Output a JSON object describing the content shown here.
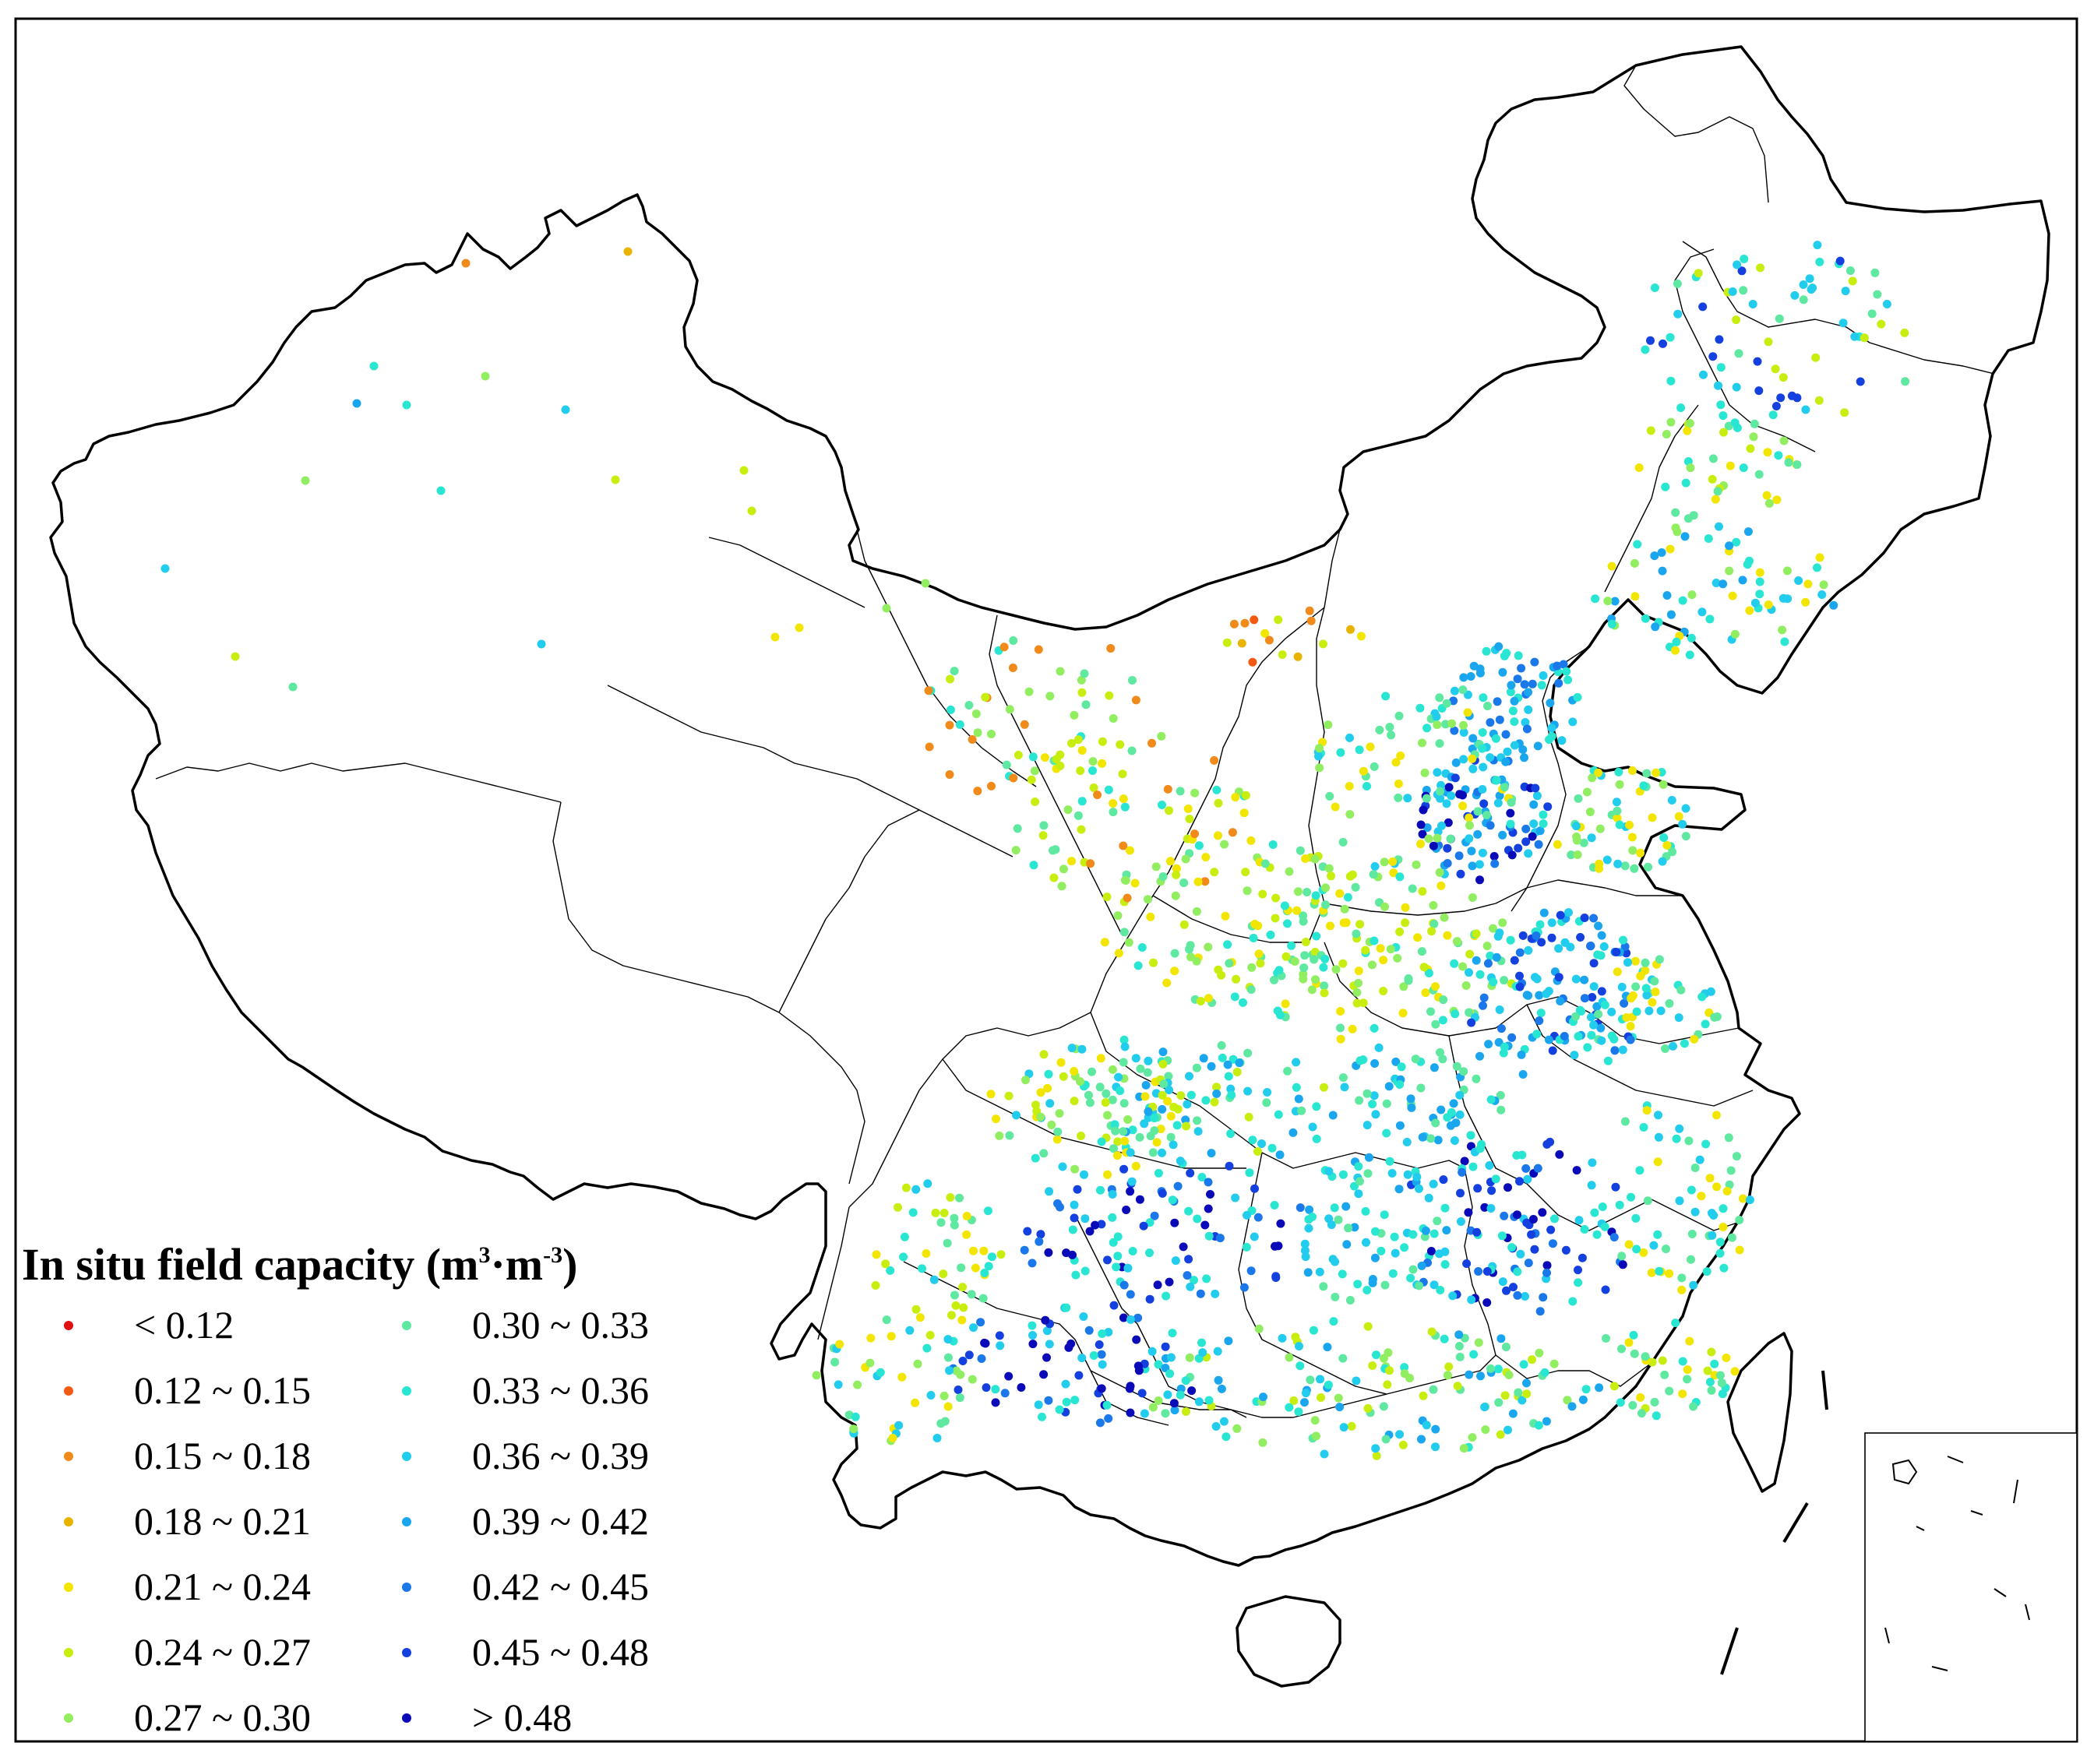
{
  "legend": {
    "title_main": "In situ field capacity (m",
    "title_sup1": "3",
    "title_mid": "·m",
    "title_sup2": "-3",
    "title_end": ")",
    "classes": [
      {
        "label": "< 0.12",
        "color": "#e01010"
      },
      {
        "label": "0.12 ~ 0.15",
        "color": "#f05a12"
      },
      {
        "label": "0.15 ~ 0.18",
        "color": "#f08a1a"
      },
      {
        "label": "0.18 ~ 0.21",
        "color": "#e8b400"
      },
      {
        "label": "0.21 ~ 0.24",
        "color": "#f2e600"
      },
      {
        "label": "0.24 ~ 0.27",
        "color": "#c8ee10"
      },
      {
        "label": "0.27 ~ 0.30",
        "color": "#90ee60"
      },
      {
        "label": "0.30 ~ 0.33",
        "color": "#5ee8a0"
      },
      {
        "label": "0.33 ~ 0.36",
        "color": "#28e6d2"
      },
      {
        "label": "0.36 ~ 0.39",
        "color": "#22ccec"
      },
      {
        "label": "0.39 ~ 0.42",
        "color": "#1aa6ee"
      },
      {
        "label": "0.42 ~ 0.45",
        "color": "#1a78ea"
      },
      {
        "label": "0.45 ~ 0.48",
        "color": "#1440e0"
      },
      {
        "label": "> 0.48",
        "color": "#0a0ab8"
      }
    ]
  },
  "map": {
    "border_color": "#000000",
    "background": "#ffffff"
  }
}
